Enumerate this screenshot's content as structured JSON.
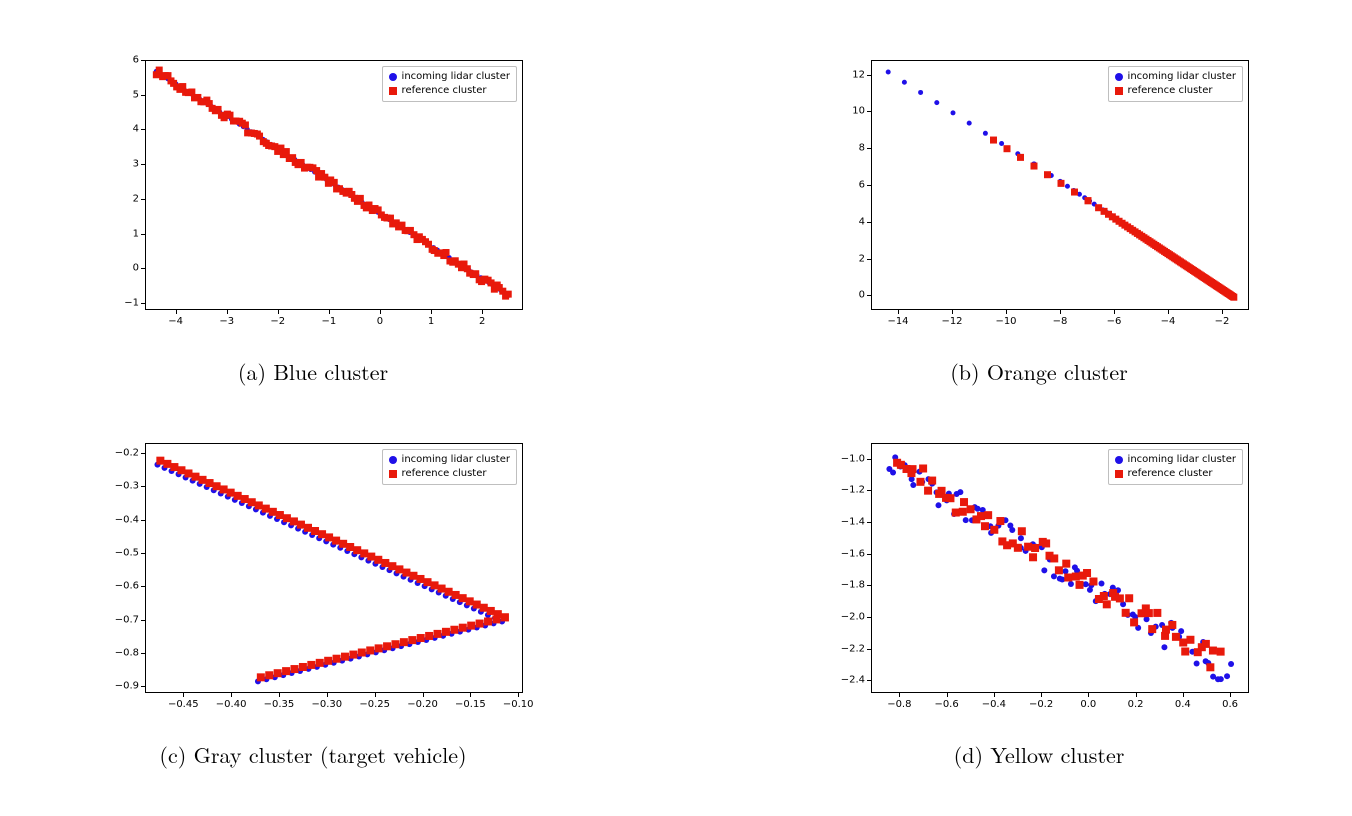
{
  "page": {
    "background": "#ffffff"
  },
  "colors": {
    "series_a": "#1f10e8",
    "series_b": "#e8190b",
    "axis": "#000000",
    "legend_border": "#bfbfbf"
  },
  "legend_common": {
    "items": [
      {
        "label": "incoming lidar cluster",
        "marker": "circle",
        "color_key": "series_a"
      },
      {
        "label": "reference cluster",
        "marker": "square",
        "color_key": "series_b"
      }
    ],
    "position": "top-right"
  },
  "panels": [
    {
      "id": "a",
      "caption": "(a) Blue cluster",
      "type": "scatter",
      "xlim": [
        -4.6,
        2.8
      ],
      "ylim": [
        -1.2,
        6.0
      ],
      "xticks": [
        -4,
        -3,
        -2,
        -1,
        0,
        1,
        2
      ],
      "yticks": [
        -1,
        0,
        1,
        2,
        3,
        4,
        5,
        6
      ],
      "tick_fontsize": 10,
      "marker_size_a": 5,
      "marker_size_b": 7,
      "series": [
        {
          "name": "incoming lidar cluster",
          "marker": "circle",
          "color": "#1f10e8",
          "gen": {
            "type": "linear",
            "x0": -4.4,
            "x1": 2.5,
            "y0": 5.7,
            "y1": -0.75,
            "n": 90,
            "jitter": 0.0
          }
        },
        {
          "name": "reference cluster",
          "marker": "square",
          "color": "#e8190b",
          "gen": {
            "type": "linear",
            "x0": -4.4,
            "x1": 2.5,
            "y0": 5.7,
            "y1": -0.75,
            "n": 120,
            "jitter": 0.015
          }
        }
      ]
    },
    {
      "id": "b",
      "caption": "(b) Orange cluster",
      "type": "scatter",
      "xlim": [
        -15,
        -1
      ],
      "ylim": [
        -0.8,
        12.8
      ],
      "xticks": [
        -14,
        -12,
        -10,
        -8,
        -6,
        -4,
        -2
      ],
      "yticks": [
        0,
        2,
        4,
        6,
        8,
        10,
        12
      ],
      "tick_fontsize": 10,
      "marker_size_a": 5,
      "marker_size_b": 7,
      "series": [
        {
          "name": "incoming lidar cluster",
          "marker": "circle",
          "color": "#1f10e8",
          "gen": {
            "type": "sparse_then_dense",
            "x0": -14.4,
            "x_sparse_end": -9.0,
            "x1": -1.6,
            "y0": 12.2,
            "y_sparse_end": 7.2,
            "y1": -0.05,
            "n_sparse": 10,
            "n_dense": 60,
            "jitter": 0.0
          }
        },
        {
          "name": "reference cluster",
          "marker": "square",
          "color": "#e8190b",
          "gen": {
            "type": "sparse_then_dense",
            "x0": -10.5,
            "x_sparse_end": -7.0,
            "x1": -1.6,
            "y0": 8.5,
            "y_sparse_end": 5.2,
            "y1": -0.05,
            "n_sparse": 8,
            "n_dense": 80,
            "jitter": 0.05
          }
        }
      ]
    },
    {
      "id": "c",
      "caption": "(c) Gray cluster (target vehicle)",
      "type": "scatter",
      "xlim": [
        -0.49,
        -0.095
      ],
      "ylim": [
        -0.92,
        -0.17
      ],
      "xticks": [
        -0.45,
        -0.4,
        -0.35,
        -0.3,
        -0.25,
        -0.2,
        -0.15,
        -0.1
      ],
      "yticks": [
        -0.9,
        -0.8,
        -0.7,
        -0.6,
        -0.5,
        -0.4,
        -0.3,
        -0.2
      ],
      "tick_fontsize": 10,
      "xtick_decimals": 2,
      "ytick_decimals": 1,
      "marker_size_a": 6,
      "marker_size_b": 8,
      "series": [
        {
          "name": "incoming lidar cluster",
          "marker": "circle",
          "color": "#1f10e8",
          "gen": {
            "type": "chevron",
            "apex": [
              -0.115,
              -0.69
            ],
            "top_end": [
              -0.475,
              -0.22
            ],
            "bot_end": [
              -0.37,
              -0.87
            ],
            "n_top": 50,
            "n_bot": 30,
            "offset": [
              -0.003,
              -0.012
            ]
          }
        },
        {
          "name": "reference cluster",
          "marker": "square",
          "color": "#e8190b",
          "gen": {
            "type": "chevron",
            "apex": [
              -0.115,
              -0.69
            ],
            "top_end": [
              -0.475,
              -0.22
            ],
            "bot_end": [
              -0.37,
              -0.87
            ],
            "n_top": 50,
            "n_bot": 30,
            "offset": [
              0,
              0
            ]
          }
        }
      ]
    },
    {
      "id": "d",
      "caption": "(d) Yellow cluster",
      "type": "scatter",
      "xlim": [
        -0.92,
        0.68
      ],
      "ylim": [
        -2.48,
        -0.9
      ],
      "xticks": [
        -0.8,
        -0.6,
        -0.4,
        -0.2,
        0.0,
        0.2,
        0.4,
        0.6
      ],
      "yticks": [
        -2.4,
        -2.2,
        -2.0,
        -1.8,
        -1.6,
        -1.4,
        -1.2,
        -1.0
      ],
      "tick_fontsize": 10,
      "xtick_decimals": 1,
      "ytick_decimals": 1,
      "marker_size_a": 6,
      "marker_size_b": 8,
      "series": [
        {
          "name": "incoming lidar cluster",
          "marker": "circle",
          "color": "#1f10e8",
          "gen": {
            "type": "noisy_linear",
            "x0": -0.85,
            "x1": 0.6,
            "y0": -1.0,
            "y1": -2.35,
            "n": 80,
            "jitter": 0.07,
            "seed": 17
          }
        },
        {
          "name": "reference cluster",
          "marker": "square",
          "color": "#e8190b",
          "gen": {
            "type": "noisy_linear",
            "x0": -0.82,
            "x1": 0.55,
            "y0": -1.02,
            "y1": -2.28,
            "n": 70,
            "jitter": 0.065,
            "seed": 41
          }
        }
      ]
    }
  ]
}
